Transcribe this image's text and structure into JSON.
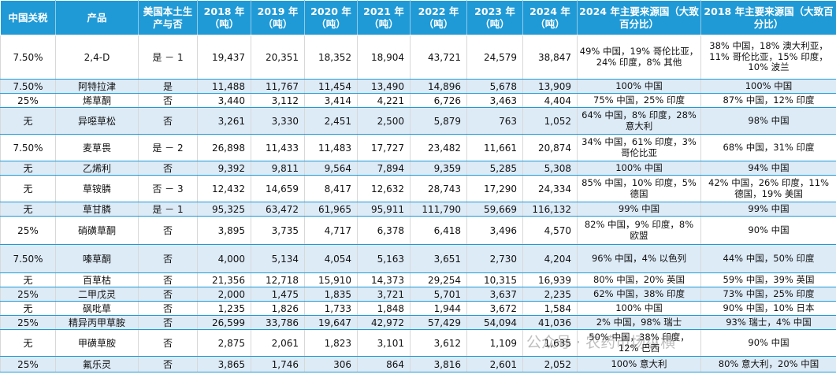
{
  "header": [
    "中国关税",
    "产品",
    "美国本土生产与否",
    "2018 年（吨）",
    "2019 年（吨）",
    "2020 年（吨）",
    "2021 年（吨）",
    "2022 年（吨）",
    "2023 年（吨）",
    "2024 年（吨）",
    "2024 年主要来源国（大致百分比）",
    "2018 年主要来源国（大致百分比）"
  ],
  "rows": [
    {
      "tariff": "7.50%",
      "product": "2,4-D",
      "us": "是 － 1",
      "y2018": "19,437",
      "y2019": "20,351",
      "y2020": "18,352",
      "y2021": "18,904",
      "y2022": "43,721",
      "y2023": "24,579",
      "y2024": "38,847",
      "src2024": "49% 中国，19% 哥伦比亚，24% 印度，8% 其他",
      "src2018": "38% 中国，18% 澳大利亚，11% 哥伦比亚，15% 印度，10% 波兰"
    },
    {
      "tariff": "7.50%",
      "product": "阿特拉津",
      "us": "是",
      "y2018": "11,488",
      "y2019": "11,767",
      "y2020": "11,454",
      "y2021": "13,490",
      "y2022": "14,896",
      "y2023": "5,678",
      "y2024": "13,909",
      "src2024": "100% 中国",
      "src2018": "100% 中国"
    },
    {
      "tariff": "25%",
      "product": "烯草酮",
      "us": "否",
      "y2018": "3,440",
      "y2019": "3,112",
      "y2020": "3,414",
      "y2021": "4,221",
      "y2022": "6,726",
      "y2023": "3,463",
      "y2024": "4,404",
      "src2024": "75% 中国，25% 印度",
      "src2018": "87% 中国，12% 印度"
    },
    {
      "tariff": "无",
      "product": "异噁草松",
      "us": "否",
      "y2018": "3,261",
      "y2019": "3,330",
      "y2020": "2,451",
      "y2021": "2,500",
      "y2022": "5,879",
      "y2023": "763",
      "y2024": "1,052",
      "src2024": "64% 中国，8% 印度，28% 意大利",
      "src2018": "98% 中国"
    },
    {
      "tariff": "7.50%",
      "product": "麦草畏",
      "us": "是 － 2",
      "y2018": "26,898",
      "y2019": "11,433",
      "y2020": "11,483",
      "y2021": "17,727",
      "y2022": "23,482",
      "y2023": "11,661",
      "y2024": "20,874",
      "src2024": "34% 中国，61% 印度，3% 哥伦比亚",
      "src2018": "68% 中国，31% 印度"
    },
    {
      "tariff": "无",
      "product": "乙烯利",
      "us": "否",
      "y2018": "9,392",
      "y2019": "9,811",
      "y2020": "9,564",
      "y2021": "7,894",
      "y2022": "9,359",
      "y2023": "5,285",
      "y2024": "5,308",
      "src2024": "100% 中国",
      "src2018": "94% 中国"
    },
    {
      "tariff": "无",
      "product": "草铵膦",
      "us": "否 － 3",
      "y2018": "12,432",
      "y2019": "14,659",
      "y2020": "8,417",
      "y2021": "12,632",
      "y2022": "28,743",
      "y2023": "17,290",
      "y2024": "24,334",
      "src2024": "85% 中国，10% 印度，5% 德国",
      "src2018": "42% 中国，26% 印度，11% 德国，19% 美国"
    },
    {
      "tariff": "无",
      "product": "草甘膦",
      "us": "是 － 1",
      "y2018": "95,325",
      "y2019": "63,472",
      "y2020": "61,965",
      "y2021": "95,911",
      "y2022": "111,790",
      "y2023": "59,669",
      "y2024": "116,132",
      "src2024": "99% 中国",
      "src2018": "99% 中国"
    },
    {
      "tariff": "25%",
      "product": "硝磺草酮",
      "us": "否",
      "y2018": "3,895",
      "y2019": "3,735",
      "y2020": "4,717",
      "y2021": "6,378",
      "y2022": "6,418",
      "y2023": "3,496",
      "y2024": "4,570",
      "src2024": "82% 中国，9% 印度，8% 欧盟",
      "src2018": "90% 中国"
    },
    {
      "tariff": "7.50%",
      "product": "嗪草酮",
      "us": "否",
      "y2018": "4,000",
      "y2019": "5,134",
      "y2020": "4,054",
      "y2021": "5,163",
      "y2022": "3,651",
      "y2023": "2,730",
      "y2024": "4,204",
      "src2024": "96% 中国，4% 以色列",
      "src2018": "44% 中国，50% 印度"
    },
    {
      "tariff": "无",
      "product": "百草枯",
      "us": "否",
      "y2018": "21,356",
      "y2019": "12,718",
      "y2020": "15,910",
      "y2021": "14,373",
      "y2022": "29,254",
      "y2023": "10,315",
      "y2024": "16,939",
      "src2024": "80% 中国，20% 英国",
      "src2018": "59% 中国，39% 英国"
    },
    {
      "tariff": "25%",
      "product": "二甲戊灵",
      "us": "否",
      "y2018": "2,000",
      "y2019": "1,475",
      "y2020": "1,835",
      "y2021": "3,721",
      "y2022": "5,701",
      "y2023": "3,637",
      "y2024": "2,235",
      "src2024": "62% 中国，38% 印度",
      "src2018": "73% 中国，25% 印度"
    },
    {
      "tariff": "无",
      "product": "砜吡草",
      "us": "否",
      "y2018": "1,235",
      "y2019": "1,826",
      "y2020": "1,733",
      "y2021": "1,848",
      "y2022": "1,944",
      "y2023": "3,672",
      "y2024": "1,584",
      "src2024": "100% 中国",
      "src2018": "90% 中国，10% 日本"
    },
    {
      "tariff": "25%",
      "product": "精异丙甲草胺",
      "us": "否",
      "y2018": "26,599",
      "y2019": "33,786",
      "y2020": "19,647",
      "y2021": "42,972",
      "y2022": "57,429",
      "y2023": "54,094",
      "y2024": "41,036",
      "src2024": "2% 中国，98% 瑞士",
      "src2018": "93% 瑞士，4% 中国"
    },
    {
      "tariff": "无",
      "product": "甲磺草胺",
      "us": "否",
      "y2018": "2,875",
      "y2019": "2,061",
      "y2020": "1,823",
      "y2021": "3,101",
      "y2022": "3,612",
      "y2023": "1,109",
      "y2024": "1,635",
      "src2024": "50% 中国，38% 印度，12% 巴西",
      "src2018": "90% 中国"
    },
    {
      "tariff": "25%",
      "product": "氟乐灵",
      "us": "否",
      "y2018": "3,865",
      "y2019": "1,746",
      "y2020": "306",
      "y2021": "864",
      "y2022": "3,816",
      "y2023": "2,601",
      "y2024": "2,052",
      "src2024": "100% 意大利",
      "src2018": "80% 意大利，20% 中国"
    }
  ],
  "watermark": "公众号 · 农药市场纵横"
}
